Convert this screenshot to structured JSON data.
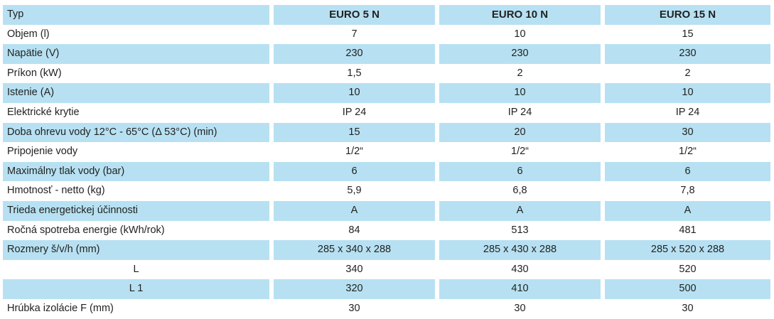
{
  "header": {
    "label": "Typ",
    "models": [
      "EURO 5 N",
      "EURO 10 N",
      "EURO 15 N"
    ]
  },
  "rows": [
    {
      "label": "Objem  (l)",
      "values": [
        "7",
        "10",
        "15"
      ]
    },
    {
      "label": "Napätie  (V)",
      "values": [
        "230",
        "230",
        "230"
      ]
    },
    {
      "label": "Príkon  (kW)",
      "values": [
        "1,5",
        "2",
        "2"
      ]
    },
    {
      "label": "Istenie  (A)",
      "values": [
        "10",
        "10",
        "10"
      ]
    },
    {
      "label": "Elektrické krytie",
      "values": [
        "IP 24",
        "IP 24",
        "IP 24"
      ]
    },
    {
      "label": "Doba ohrevu vody 12°C - 65°C  (Δ 53°C)  (min)",
      "values": [
        "15",
        "20",
        "30"
      ]
    },
    {
      "label": "Pripojenie vody",
      "values": [
        "1/2“",
        "1/2“",
        "1/2“"
      ]
    },
    {
      "label": "Maximálny tlak vody  (bar)",
      "values": [
        "6",
        "6",
        "6"
      ]
    },
    {
      "label": "Hmotnosť  - netto  (kg)",
      "values": [
        "5,9",
        "6,8",
        "7,8"
      ]
    },
    {
      "label": "Trieda energetickej účinnosti",
      "values": [
        "A",
        "A",
        "A"
      ]
    },
    {
      "label": "Ročná spotreba energie  (kWh/rok)",
      "values": [
        "84",
        "513",
        "481"
      ]
    },
    {
      "label": "Rozmery   š/v/h   (mm)",
      "values": [
        "285 x 340 x 288",
        "285 x 430 x 288",
        "285 x 520 x 288"
      ]
    },
    {
      "label": "L",
      "values": [
        "340",
        "430",
        "520"
      ]
    },
    {
      "label": "L 1",
      "values": [
        "320",
        "410",
        "500"
      ]
    },
    {
      "label": "Hrúbka izolácie  F  (mm)",
      "values": [
        "30",
        "30",
        "30"
      ]
    }
  ],
  "colors": {
    "shaded_row": "#b7e1f2",
    "plain_row": "#ffffff",
    "text": "#222222"
  }
}
